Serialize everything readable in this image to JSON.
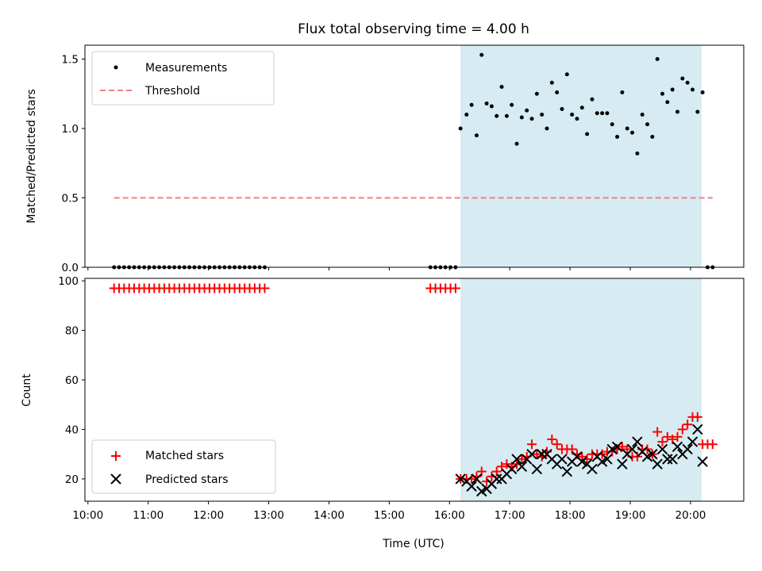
{
  "chart_data": [
    {
      "type": "scatter",
      "title": "Flux total observing time = 4.00 h",
      "ylabel": "Matched/Predicted stars",
      "xlabel": "",
      "ylim": [
        0,
        1.6
      ],
      "yticks": [
        "0.0",
        "0.5",
        "1.0",
        "1.5"
      ],
      "xlim": [
        "09:57",
        "20:53"
      ],
      "shaded_span": [
        "16:11",
        "20:11"
      ],
      "shade_color": "#add8e6",
      "legend_position": "upper-left",
      "series": [
        {
          "name": "Measurements",
          "marker": "dot",
          "color": "#000000",
          "points": [
            [
              "10:26",
              0
            ],
            [
              "10:31",
              0
            ],
            [
              "10:36",
              0
            ],
            [
              "10:41",
              0
            ],
            [
              "10:46",
              0
            ],
            [
              "10:51",
              0
            ],
            [
              "10:56",
              0
            ],
            [
              "11:01",
              0
            ],
            [
              "11:06",
              0
            ],
            [
              "11:11",
              0
            ],
            [
              "11:16",
              0
            ],
            [
              "11:21",
              0
            ],
            [
              "11:26",
              0
            ],
            [
              "11:31",
              0
            ],
            [
              "11:36",
              0
            ],
            [
              "11:41",
              0
            ],
            [
              "11:46",
              0
            ],
            [
              "11:51",
              0
            ],
            [
              "11:56",
              0
            ],
            [
              "12:01",
              0
            ],
            [
              "12:06",
              0
            ],
            [
              "12:11",
              0
            ],
            [
              "12:16",
              0
            ],
            [
              "12:21",
              0
            ],
            [
              "12:26",
              0
            ],
            [
              "12:31",
              0
            ],
            [
              "12:36",
              0
            ],
            [
              "12:41",
              0
            ],
            [
              "12:46",
              0
            ],
            [
              "12:51",
              0
            ],
            [
              "12:56",
              0
            ],
            [
              "15:41",
              0
            ],
            [
              "15:46",
              0
            ],
            [
              "15:51",
              0
            ],
            [
              "15:56",
              0
            ],
            [
              "16:01",
              0
            ],
            [
              "16:06",
              0
            ],
            [
              "16:11",
              1.0
            ],
            [
              "16:17",
              1.1
            ],
            [
              "16:22",
              1.17
            ],
            [
              "16:27",
              0.95
            ],
            [
              "16:32",
              1.53
            ],
            [
              "16:37",
              1.18
            ],
            [
              "16:42",
              1.16
            ],
            [
              "16:47",
              1.09
            ],
            [
              "16:52",
              1.3
            ],
            [
              "16:57",
              1.09
            ],
            [
              "17:02",
              1.17
            ],
            [
              "17:07",
              0.89
            ],
            [
              "17:12",
              1.08
            ],
            [
              "17:17",
              1.13
            ],
            [
              "17:22",
              1.07
            ],
            [
              "17:27",
              1.25
            ],
            [
              "17:32",
              1.1
            ],
            [
              "17:37",
              1.0
            ],
            [
              "17:42",
              1.33
            ],
            [
              "17:47",
              1.26
            ],
            [
              "17:52",
              1.14
            ],
            [
              "17:57",
              1.39
            ],
            [
              "18:02",
              1.1
            ],
            [
              "18:07",
              1.07
            ],
            [
              "18:12",
              1.15
            ],
            [
              "18:17",
              0.96
            ],
            [
              "18:22",
              1.21
            ],
            [
              "18:27",
              1.11
            ],
            [
              "18:32",
              1.11
            ],
            [
              "18:37",
              1.11
            ],
            [
              "18:42",
              1.03
            ],
            [
              "18:47",
              0.94
            ],
            [
              "18:52",
              1.26
            ],
            [
              "18:57",
              1.0
            ],
            [
              "19:02",
              0.97
            ],
            [
              "19:07",
              0.82
            ],
            [
              "19:12",
              1.1
            ],
            [
              "19:17",
              1.03
            ],
            [
              "19:22",
              0.94
            ],
            [
              "19:27",
              1.5
            ],
            [
              "19:32",
              1.25
            ],
            [
              "19:37",
              1.19
            ],
            [
              "19:42",
              1.28
            ],
            [
              "19:47",
              1.12
            ],
            [
              "19:52",
              1.36
            ],
            [
              "19:57",
              1.33
            ],
            [
              "20:02",
              1.28
            ],
            [
              "20:07",
              1.12
            ],
            [
              "20:12",
              1.26
            ],
            [
              "20:17",
              0
            ],
            [
              "20:22",
              0
            ]
          ]
        },
        {
          "name": "Threshold",
          "marker": "dashed-line",
          "color": "#f08080",
          "points": [
            [
              "10:26",
              0.5
            ],
            [
              "20:22",
              0.5
            ]
          ]
        }
      ]
    },
    {
      "type": "scatter",
      "title": "",
      "ylabel": "Count",
      "xlabel": "Time (UTC)",
      "ylim": [
        11,
        101
      ],
      "yticks": [
        "20",
        "40",
        "60",
        "80",
        "100"
      ],
      "xlim": [
        "09:57",
        "20:53"
      ],
      "xticks": [
        "10:00",
        "11:00",
        "12:00",
        "13:00",
        "14:00",
        "15:00",
        "16:00",
        "17:00",
        "18:00",
        "19:00",
        "20:00"
      ],
      "shaded_span": [
        "16:11",
        "20:11"
      ],
      "shade_color": "#add8e6",
      "legend_position": "lower-left",
      "series": [
        {
          "name": "Matched stars",
          "marker": "plus",
          "color": "#ff0000",
          "points": [
            [
              "10:26",
              97
            ],
            [
              "10:31",
              97
            ],
            [
              "10:36",
              97
            ],
            [
              "10:41",
              97
            ],
            [
              "10:46",
              97
            ],
            [
              "10:51",
              97
            ],
            [
              "10:56",
              97
            ],
            [
              "11:01",
              97
            ],
            [
              "11:06",
              97
            ],
            [
              "11:11",
              97
            ],
            [
              "11:16",
              97
            ],
            [
              "11:21",
              97
            ],
            [
              "11:26",
              97
            ],
            [
              "11:31",
              97
            ],
            [
              "11:36",
              97
            ],
            [
              "11:41",
              97
            ],
            [
              "11:46",
              97
            ],
            [
              "11:51",
              97
            ],
            [
              "11:56",
              97
            ],
            [
              "12:01",
              97
            ],
            [
              "12:06",
              97
            ],
            [
              "12:11",
              97
            ],
            [
              "12:16",
              97
            ],
            [
              "12:21",
              97
            ],
            [
              "12:26",
              97
            ],
            [
              "12:31",
              97
            ],
            [
              "12:36",
              97
            ],
            [
              "12:41",
              97
            ],
            [
              "12:46",
              97
            ],
            [
              "12:51",
              97
            ],
            [
              "12:56",
              97
            ],
            [
              "15:41",
              97
            ],
            [
              "15:46",
              97
            ],
            [
              "15:51",
              97
            ],
            [
              "15:56",
              97
            ],
            [
              "16:01",
              97
            ],
            [
              "16:06",
              97
            ],
            [
              "16:11",
              20
            ],
            [
              "16:17",
              20
            ],
            [
              "16:22",
              20
            ],
            [
              "16:27",
              21
            ],
            [
              "16:32",
              23
            ],
            [
              "16:37",
              19
            ],
            [
              "16:42",
              21
            ],
            [
              "16:47",
              23
            ],
            [
              "16:52",
              25
            ],
            [
              "16:57",
              26
            ],
            [
              "17:02",
              25
            ],
            [
              "17:07",
              26
            ],
            [
              "17:12",
              28
            ],
            [
              "17:17",
              29
            ],
            [
              "17:22",
              34
            ],
            [
              "17:27",
              30
            ],
            [
              "17:32",
              29
            ],
            [
              "17:37",
              31
            ],
            [
              "17:42",
              36
            ],
            [
              "17:47",
              34
            ],
            [
              "17:52",
              32
            ],
            [
              "17:57",
              32
            ],
            [
              "18:02",
              32
            ],
            [
              "18:07",
              30
            ],
            [
              "18:12",
              29
            ],
            [
              "18:17",
              28
            ],
            [
              "18:22",
              30
            ],
            [
              "18:27",
              30
            ],
            [
              "18:32",
              30
            ],
            [
              "18:37",
              31
            ],
            [
              "18:42",
              31
            ],
            [
              "18:47",
              32
            ],
            [
              "18:52",
              33
            ],
            [
              "18:57",
              32
            ],
            [
              "19:02",
              29
            ],
            [
              "19:07",
              29
            ],
            [
              "19:12",
              32
            ],
            [
              "19:17",
              32
            ],
            [
              "19:22",
              30
            ],
            [
              "19:27",
              39
            ],
            [
              "19:32",
              35
            ],
            [
              "19:37",
              37
            ],
            [
              "19:42",
              36
            ],
            [
              "19:47",
              37
            ],
            [
              "19:52",
              40
            ],
            [
              "19:57",
              42
            ],
            [
              "20:02",
              45
            ],
            [
              "20:07",
              45
            ],
            [
              "20:12",
              34
            ],
            [
              "20:17",
              34
            ],
            [
              "20:22",
              34
            ]
          ]
        },
        {
          "name": "Predicted stars",
          "marker": "x",
          "color": "#000000",
          "points": [
            [
              "16:11",
              20
            ],
            [
              "16:17",
              19
            ],
            [
              "16:22",
              17
            ],
            [
              "16:27",
              20
            ],
            [
              "16:32",
              15
            ],
            [
              "16:37",
              16
            ],
            [
              "16:42",
              18
            ],
            [
              "16:47",
              20
            ],
            [
              "16:52",
              20
            ],
            [
              "16:57",
              22
            ],
            [
              "17:02",
              24
            ],
            [
              "17:07",
              28
            ],
            [
              "17:12",
              25
            ],
            [
              "17:17",
              28
            ],
            [
              "17:22",
              30
            ],
            [
              "17:27",
              24
            ],
            [
              "17:32",
              30
            ],
            [
              "17:37",
              30
            ],
            [
              "17:42",
              28
            ],
            [
              "17:47",
              26
            ],
            [
              "17:52",
              28
            ],
            [
              "17:57",
              23
            ],
            [
              "18:02",
              27
            ],
            [
              "18:07",
              29
            ],
            [
              "18:12",
              27
            ],
            [
              "18:17",
              26
            ],
            [
              "18:22",
              24
            ],
            [
              "18:27",
              29
            ],
            [
              "18:32",
              27
            ],
            [
              "18:37",
              28
            ],
            [
              "18:42",
              32
            ],
            [
              "18:47",
              33
            ],
            [
              "18:52",
              26
            ],
            [
              "18:57",
              30
            ],
            [
              "19:02",
              32
            ],
            [
              "19:07",
              35
            ],
            [
              "19:12",
              31
            ],
            [
              "19:17",
              29
            ],
            [
              "19:22",
              30
            ],
            [
              "19:27",
              26
            ],
            [
              "19:32",
              32
            ],
            [
              "19:37",
              28
            ],
            [
              "19:42",
              28
            ],
            [
              "19:47",
              33
            ],
            [
              "19:52",
              30
            ],
            [
              "19:57",
              32
            ],
            [
              "20:02",
              35
            ],
            [
              "20:07",
              40
            ],
            [
              "20:12",
              27
            ]
          ]
        }
      ]
    }
  ]
}
